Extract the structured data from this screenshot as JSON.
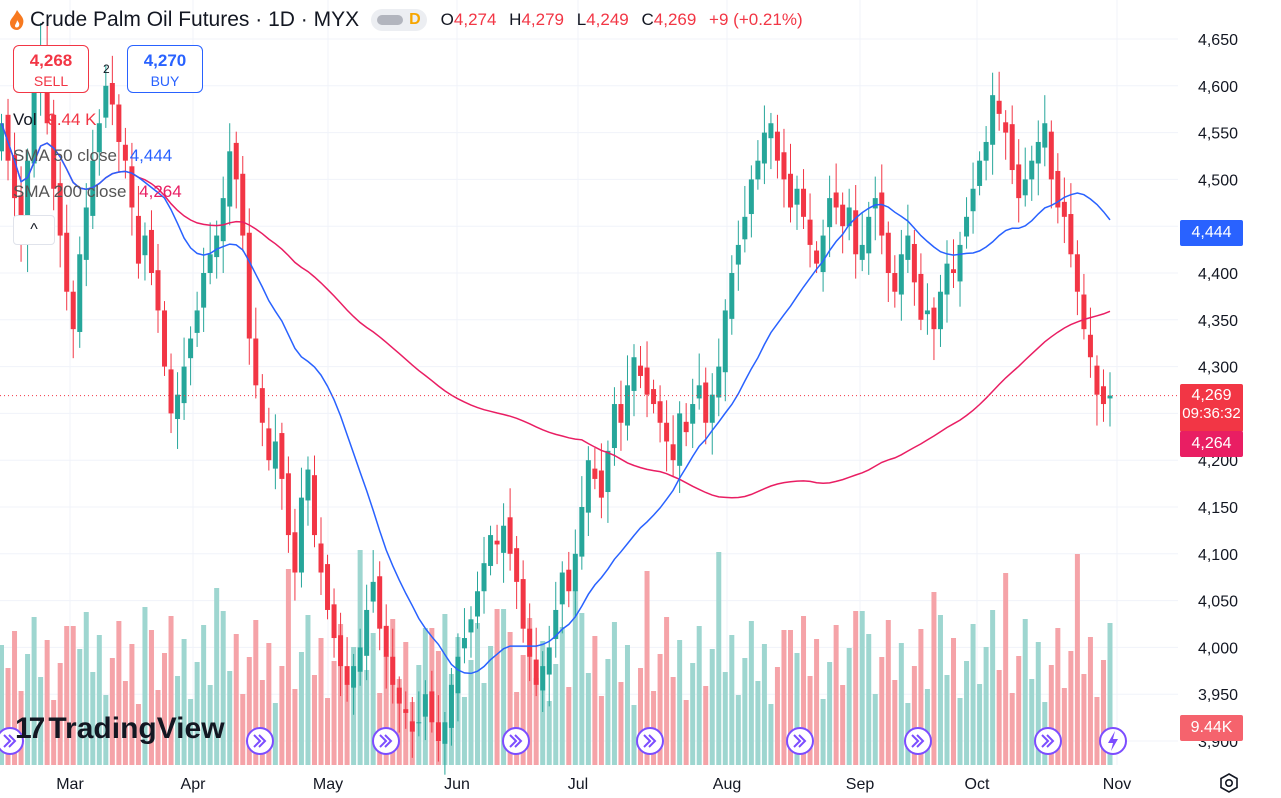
{
  "header": {
    "title": "Crude Palm Oil Futures · 1D · MYX",
    "flag": "D",
    "ohlc": [
      {
        "k": "O",
        "v": "4,274"
      },
      {
        "k": "H",
        "v": "4,279"
      },
      {
        "k": "L",
        "v": "4,249"
      },
      {
        "k": "C",
        "v": "4,269"
      }
    ],
    "change": "+9 (+0.21%)"
  },
  "trade": {
    "sell_price": "4,268",
    "sell_label": "SELL",
    "buy_price": "4,270",
    "buy_label": "BUY",
    "spread": "2"
  },
  "indicators": {
    "vol_label": "Vol",
    "vol_value": "9.44 K",
    "sma50_label": "SMA 50 close",
    "sma50_value": "4,444",
    "sma200_label": "SMA 200 close",
    "sma200_value": "4,264",
    "collapse": "^"
  },
  "price_labels": {
    "sma50": "4,444",
    "last": "4,269",
    "countdown": "09:36:32",
    "sma200": "4,264",
    "volume": "9.44K"
  },
  "colors": {
    "up": "#26a69a",
    "down": "#f23645",
    "sma50": "#2962ff",
    "sma200": "#e91e63",
    "vol_up": "#9ed6d0",
    "vol_down": "#f5a3a8",
    "event": "#7c4dff"
  },
  "logo": "TradingView",
  "icons": [
    "flame-icon",
    "settings-icon",
    "event-arrow-icon",
    "lightning-icon"
  ],
  "chart_data": {
    "type": "candlestick",
    "symbol": "Crude Palm Oil Futures",
    "timeframe": "1D",
    "exchange": "MYX",
    "y_axis": {
      "ticks": [
        3900,
        3950,
        4000,
        4050,
        4100,
        4150,
        4200,
        4250,
        4300,
        4350,
        4400,
        4450,
        4500,
        4550,
        4600,
        4650
      ],
      "tick_labels": [
        "3,900",
        "3,950",
        "4,000",
        "4,050",
        "4,100",
        "4,150",
        "4,200",
        "4,250",
        "4,300",
        "4,350",
        "4,400",
        "4,450",
        "4,500",
        "4,550",
        "4,600",
        "4,650"
      ],
      "range": [
        3880,
        4660
      ]
    },
    "x_axis": {
      "month_labels": [
        "Mar",
        "Apr",
        "May",
        "Jun",
        "Jul",
        "Aug",
        "Sep",
        "Oct",
        "Nov"
      ]
    },
    "ohlc_closes": [
      4560,
      4520,
      4480,
      4430,
      4520,
      4600,
      4640,
      4560,
      4490,
      4440,
      4380,
      4340,
      4420,
      4470,
      4520,
      4560,
      4600,
      4580,
      4540,
      4520,
      4470,
      4410,
      4440,
      4400,
      4360,
      4300,
      4250,
      4270,
      4300,
      4330,
      4360,
      4400,
      4420,
      4440,
      4480,
      4530,
      4500,
      4440,
      4330,
      4280,
      4240,
      4200,
      4220,
      4180,
      4120,
      4080,
      4160,
      4190,
      4120,
      4080,
      4040,
      4010,
      3980,
      3960,
      3980,
      4000,
      4040,
      4070,
      4020,
      3990,
      3960,
      3940,
      3930,
      3910,
      3920,
      3950,
      3920,
      3900,
      3920,
      3960,
      3990,
      4010,
      4030,
      4060,
      4090,
      4120,
      4110,
      4130,
      4100,
      4070,
      4020,
      3990,
      3960,
      3980,
      4000,
      4040,
      4080,
      4060,
      4100,
      4150,
      4200,
      4180,
      4160,
      4210,
      4260,
      4240,
      4280,
      4310,
      4290,
      4270,
      4260,
      4240,
      4220,
      4200,
      4250,
      4230,
      4260,
      4280,
      4240,
      4270,
      4300,
      4360,
      4400,
      4430,
      4460,
      4500,
      4520,
      4550,
      4560,
      4520,
      4500,
      4470,
      4490,
      4460,
      4430,
      4410,
      4440,
      4480,
      4470,
      4450,
      4470,
      4420,
      4430,
      4460,
      4480,
      4440,
      4400,
      4380,
      4420,
      4440,
      4390,
      4350,
      4360,
      4340,
      4380,
      4410,
      4400,
      4430,
      4460,
      4490,
      4520,
      4540,
      4590,
      4570,
      4550,
      4510,
      4480,
      4500,
      4520,
      4540,
      4560,
      4500,
      4470,
      4460,
      4420,
      4380,
      4340,
      4310,
      4270,
      4260,
      4269
    ],
    "series": [
      {
        "name": "SMA 50 close",
        "last": 4444
      },
      {
        "name": "SMA 200 close",
        "last": 4264
      }
    ],
    "last_price": 4269,
    "last_volume": "9.44K"
  }
}
